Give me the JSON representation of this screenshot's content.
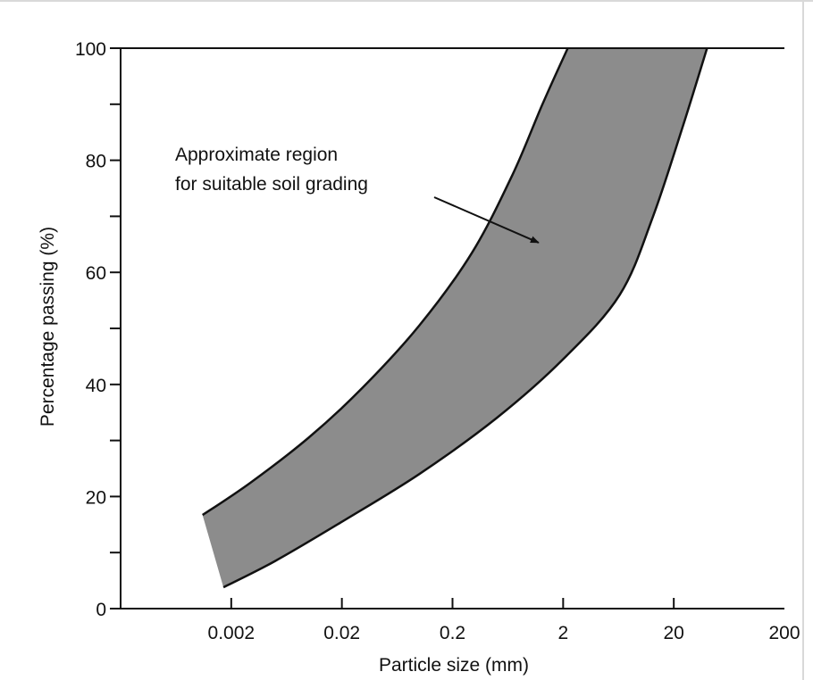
{
  "chart_data": {
    "type": "area",
    "title": "",
    "xlabel": "Particle size (mm)",
    "ylabel": "Percentage passing (%)",
    "x_scale": "log",
    "xlim": [
      0.0002,
      200
    ],
    "ylim": [
      0,
      100
    ],
    "x_ticks": [
      {
        "value": 0.002,
        "label": "0.002"
      },
      {
        "value": 0.02,
        "label": "0.02"
      },
      {
        "value": 0.2,
        "label": "0.2"
      },
      {
        "value": 2,
        "label": "2"
      },
      {
        "value": 20,
        "label": "20"
      },
      {
        "value": 200,
        "label": "200"
      }
    ],
    "y_ticks": [
      {
        "value": 0,
        "label": "0"
      },
      {
        "value": 20,
        "label": "20"
      },
      {
        "value": 40,
        "label": "40"
      },
      {
        "value": 60,
        "label": "60"
      },
      {
        "value": 80,
        "label": "80"
      },
      {
        "value": 100,
        "label": "100"
      }
    ],
    "band": {
      "fill": "#8c8c8c",
      "upper": [
        {
          "x": 0.0011,
          "y": 16.7
        },
        {
          "x": 0.003,
          "y": 22.5
        },
        {
          "x": 0.01,
          "y": 30.5
        },
        {
          "x": 0.03,
          "y": 39.2
        },
        {
          "x": 0.1,
          "y": 50.5
        },
        {
          "x": 0.3,
          "y": 63.5
        },
        {
          "x": 0.7,
          "y": 77.5
        },
        {
          "x": 1.3,
          "y": 90
        },
        {
          "x": 2.2,
          "y": 100
        }
      ],
      "lower": [
        {
          "x": 0.0017,
          "y": 3.8
        },
        {
          "x": 0.005,
          "y": 8.5
        },
        {
          "x": 0.02,
          "y": 15.5
        },
        {
          "x": 0.1,
          "y": 24
        },
        {
          "x": 0.5,
          "y": 34
        },
        {
          "x": 2,
          "y": 44.5
        },
        {
          "x": 6.5,
          "y": 56
        },
        {
          "x": 13,
          "y": 70
        },
        {
          "x": 25,
          "y": 87
        },
        {
          "x": 40,
          "y": 100
        }
      ]
    },
    "annotation": {
      "lines": [
        "Approximate region",
        "for suitable soil grading"
      ],
      "arrow_to": {
        "x": 1.2,
        "y": 65.3
      }
    },
    "grid": false,
    "legend": "none"
  }
}
